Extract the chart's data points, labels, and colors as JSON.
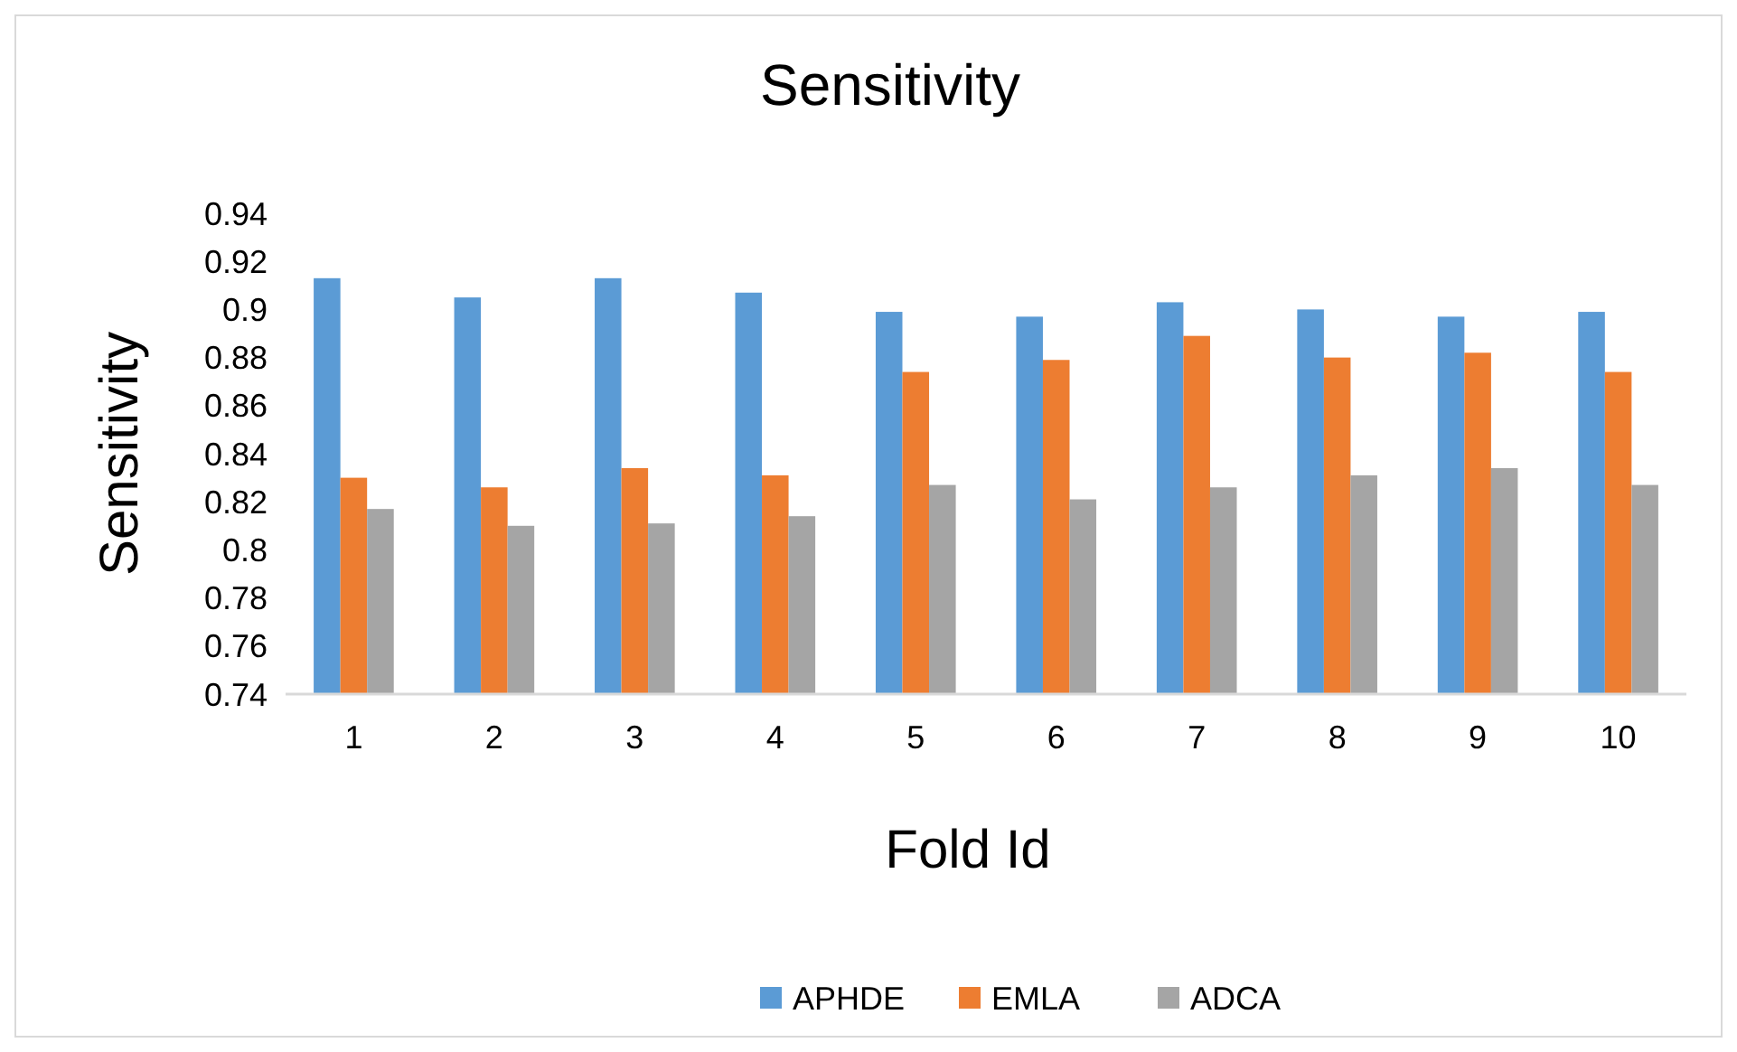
{
  "chart_data": {
    "type": "bar",
    "title": "Sensitivity",
    "xlabel": "Fold Id",
    "ylabel": "Sensitivity",
    "categories": [
      "1",
      "2",
      "3",
      "4",
      "5",
      "6",
      "7",
      "8",
      "9",
      "10"
    ],
    "series": [
      {
        "name": "APHDE",
        "color": "#5b9bd5",
        "values": [
          0.913,
          0.905,
          0.913,
          0.907,
          0.899,
          0.897,
          0.903,
          0.9,
          0.897,
          0.899
        ]
      },
      {
        "name": "EMLA",
        "color": "#ed7d31",
        "values": [
          0.83,
          0.826,
          0.834,
          0.831,
          0.874,
          0.879,
          0.889,
          0.88,
          0.882,
          0.874
        ]
      },
      {
        "name": "ADCA",
        "color": "#a5a5a5",
        "values": [
          0.817,
          0.81,
          0.811,
          0.814,
          0.827,
          0.821,
          0.826,
          0.831,
          0.834,
          0.827
        ]
      }
    ],
    "ylim": [
      0.74,
      0.94
    ],
    "yticks": [
      0.74,
      0.76,
      0.78,
      0.8,
      0.82,
      0.84,
      0.86,
      0.88,
      0.9,
      0.92,
      0.94
    ],
    "grid": false,
    "legend": "bottom"
  }
}
